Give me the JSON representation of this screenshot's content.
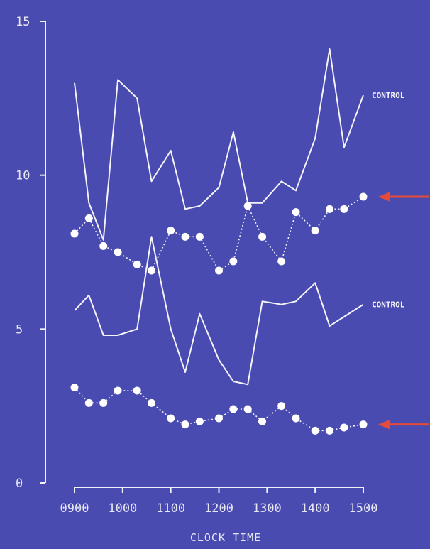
{
  "chart_data": {
    "type": "line",
    "xlabel": "CLOCK TIME",
    "ylabel": "",
    "xlim": [
      900,
      1500
    ],
    "ylim": [
      0,
      15
    ],
    "x_ticks": [
      "0900",
      "1000",
      "1100",
      "1200",
      "1300",
      "1400",
      "1500"
    ],
    "x_tick_values": [
      900,
      1000,
      1100,
      1200,
      1300,
      1400,
      1500
    ],
    "y_ticks": [
      "0",
      "5",
      "10",
      "15"
    ],
    "y_tick_values": [
      0,
      5,
      10,
      15
    ],
    "grid": false,
    "series": [
      {
        "name": "CONTROL",
        "style": "solid",
        "x": [
          900,
          930,
          960,
          990,
          1030,
          1060,
          1100,
          1130,
          1160,
          1200,
          1230,
          1260,
          1290,
          1330,
          1360,
          1400,
          1430,
          1460,
          1500
        ],
        "y": [
          13.0,
          9.1,
          7.9,
          13.1,
          12.5,
          9.8,
          10.8,
          8.9,
          9.0,
          9.6,
          11.4,
          9.1,
          9.1,
          9.8,
          9.5,
          11.2,
          14.1,
          10.9,
          12.6
        ]
      },
      {
        "name": "",
        "style": "dotted-markers",
        "arrow": true,
        "x": [
          900,
          930,
          960,
          990,
          1030,
          1060,
          1100,
          1130,
          1160,
          1200,
          1230,
          1260,
          1290,
          1330,
          1360,
          1400,
          1430,
          1460,
          1500
        ],
        "y": [
          8.1,
          8.6,
          7.7,
          7.5,
          7.1,
          6.9,
          8.2,
          8.0,
          8.0,
          6.9,
          7.2,
          9.0,
          8.0,
          7.2,
          8.8,
          8.2,
          8.9,
          8.9,
          9.3
        ]
      },
      {
        "name": "CONTROL",
        "style": "solid",
        "x": [
          900,
          930,
          960,
          990,
          1030,
          1060,
          1100,
          1130,
          1160,
          1200,
          1230,
          1260,
          1290,
          1330,
          1360,
          1400,
          1430,
          1460,
          1500
        ],
        "y": [
          5.6,
          6.1,
          4.8,
          4.8,
          5.0,
          8.0,
          5.0,
          3.6,
          5.5,
          4.0,
          3.3,
          3.2,
          5.9,
          5.8,
          5.9,
          6.5,
          5.1,
          5.4,
          5.8
        ]
      },
      {
        "name": "",
        "style": "dotted-markers",
        "arrow": true,
        "x": [
          900,
          930,
          960,
          990,
          1030,
          1060,
          1100,
          1130,
          1160,
          1200,
          1230,
          1260,
          1290,
          1330,
          1360,
          1400,
          1430,
          1460,
          1500
        ],
        "y": [
          3.1,
          2.6,
          2.6,
          3.0,
          3.0,
          2.6,
          2.1,
          1.9,
          2.0,
          2.1,
          2.4,
          2.4,
          2.0,
          2.5,
          2.1,
          1.7,
          1.7,
          1.8,
          1.9
        ]
      }
    ],
    "colors": {
      "background": "#4a4bb0",
      "lines": "#f4f4fa",
      "arrow": "#e44b3a"
    }
  }
}
